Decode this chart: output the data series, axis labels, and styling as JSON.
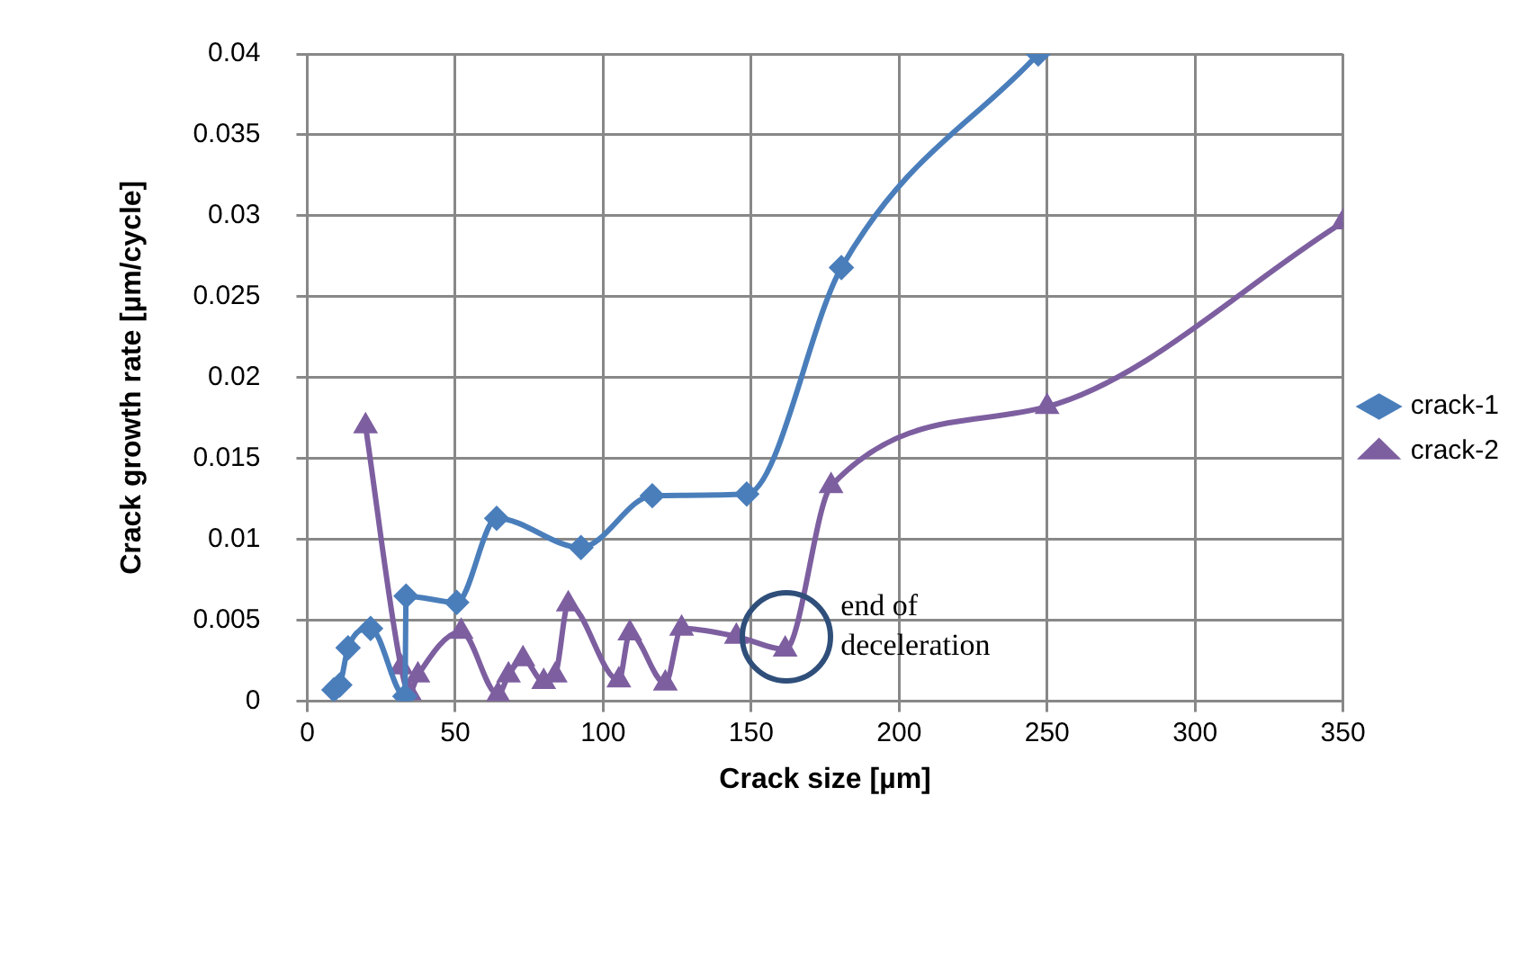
{
  "chart_data": {
    "type": "line",
    "xlabel": "Crack size [µm]",
    "ylabel": "Crack growth rate [µm/cycle]",
    "xlim": [
      0,
      350
    ],
    "xticks": [
      0,
      50,
      100,
      150,
      200,
      250,
      300,
      350
    ],
    "ylim": [
      0,
      0.04
    ],
    "yticks": [
      0,
      0.005,
      0.01,
      0.015,
      0.02,
      0.025,
      0.03,
      0.035,
      0.04
    ],
    "grid": true,
    "legend": "right",
    "series": [
      {
        "name": "crack-1",
        "color": "#4a7ebb",
        "marker": "diamond",
        "x": [
          9,
          11,
          13.8,
          21.4,
          33,
          33.4,
          50.5,
          64,
          92.5,
          116.6,
          148.5,
          180.5,
          247
        ],
        "values": [
          0.0007,
          0.001,
          0.0033,
          0.0045,
          0.0003,
          0.0065,
          0.0061,
          0.0113,
          0.0095,
          0.0127,
          0.0128,
          0.0268,
          0.04
        ]
      },
      {
        "name": "crack-2",
        "color": "#7d5fa0",
        "marker": "triangle",
        "x": [
          19.7,
          31.7,
          34.5,
          37.4,
          52,
          64.5,
          68,
          72.9,
          79.9,
          83.8,
          88.2,
          105.3,
          109,
          121,
          126.5,
          145,
          161.5,
          177,
          250,
          350
        ],
        "values": [
          0.017,
          0.0021,
          0.0005,
          0.0016,
          0.0043,
          0.0004,
          0.0016,
          0.0026,
          0.0012,
          0.0016,
          0.006,
          0.0013,
          0.0042,
          0.0011,
          0.0045,
          0.004,
          0.0032,
          0.0133,
          0.0182,
          0.0296
        ]
      }
    ],
    "annotations": [
      {
        "text": "end of deceleration",
        "x": 162,
        "y": 0.004
      }
    ]
  }
}
